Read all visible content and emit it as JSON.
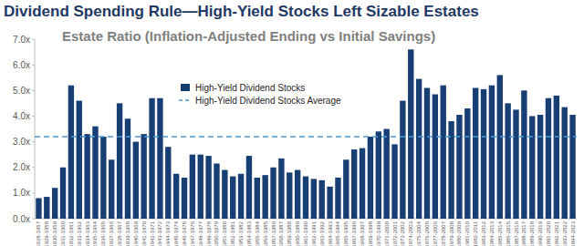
{
  "chart_data": {
    "type": "bar",
    "title": "Dividend Spending Rule—High-Yield Stocks Left Sizable Estates",
    "subtitle": "Estate Ratio (Inflation-Adjusted Ending vs Initial Savings)",
    "categories": [
      "1928-1957",
      "1929-1958",
      "1930-1959",
      "1931-1960",
      "1932-1961",
      "1933-1962",
      "1934-1963",
      "1935-1964",
      "1936-1965",
      "1937-1966",
      "1938-1967",
      "1939-1968",
      "1940-1969",
      "1941-1970",
      "1942-1971",
      "1943-1972",
      "1944-1973",
      "1945-1974",
      "1946-1975",
      "1947-1976",
      "1948-1977",
      "1949-1978",
      "1950-1979",
      "1951-1980",
      "1952-1981",
      "1953-1982",
      "1954-1983",
      "1955-1984",
      "1956-1985",
      "1957-1986",
      "1958-1987",
      "1959-1988",
      "1960-1989",
      "1961-1990",
      "1962-1991",
      "1963-1992",
      "1964-1993",
      "1965-1994",
      "1966-1995",
      "1967-1996",
      "1968-1997",
      "1969-1998",
      "1970-1999",
      "1971-2000",
      "1972-2001",
      "1973-2002",
      "1974-2003",
      "1975-2004",
      "1976-2005",
      "1977-2006",
      "1978-2007",
      "1979-2008",
      "1980-2009",
      "1981-2010",
      "1982-2011",
      "1983-2012",
      "1984-2013",
      "1985-2014",
      "1986-2015",
      "1987-2016",
      "1988-2017",
      "1989-2018",
      "1990-2019",
      "1991-2020",
      "1992-2021",
      "1993-2022",
      "1994-2023"
    ],
    "series": [
      {
        "name": "High-Yield Dividend Stocks",
        "color": "#173f73",
        "values": [
          0.8,
          0.85,
          1.2,
          2.0,
          5.2,
          4.6,
          3.3,
          3.6,
          3.2,
          2.3,
          4.5,
          3.9,
          3.0,
          3.3,
          4.7,
          4.7,
          2.8,
          1.75,
          1.6,
          2.5,
          2.5,
          2.45,
          2.15,
          1.9,
          1.65,
          1.75,
          2.45,
          1.6,
          1.7,
          2.0,
          2.35,
          1.8,
          1.9,
          1.65,
          1.55,
          1.5,
          1.25,
          1.6,
          2.3,
          2.7,
          2.75,
          3.2,
          3.4,
          3.5,
          2.9,
          4.6,
          6.6,
          5.45,
          5.1,
          4.85,
          5.2,
          3.8,
          4.05,
          4.3,
          5.1,
          5.05,
          5.2,
          5.6,
          4.5,
          4.25,
          5.0,
          4.0,
          4.05,
          4.7,
          4.8,
          4.35,
          4.05
        ]
      }
    ],
    "average_line": {
      "name": "High-Yield Dividend Stocks Average",
      "value": 3.2,
      "color": "#4a9ad6",
      "line_style": "dashed"
    },
    "ylim": [
      0,
      7
    ],
    "yticks": [
      {
        "value": 0,
        "label": "0.0x"
      },
      {
        "value": 1,
        "label": "1.0x"
      },
      {
        "value": 2,
        "label": "2.0x"
      },
      {
        "value": 3,
        "label": "3.0x"
      },
      {
        "value": 4,
        "label": "4.0x"
      },
      {
        "value": 5,
        "label": "5.0x"
      },
      {
        "value": 6,
        "label": "6.0x"
      },
      {
        "value": 7,
        "label": "7.0x"
      }
    ],
    "grid": false,
    "legend": "top-left"
  }
}
